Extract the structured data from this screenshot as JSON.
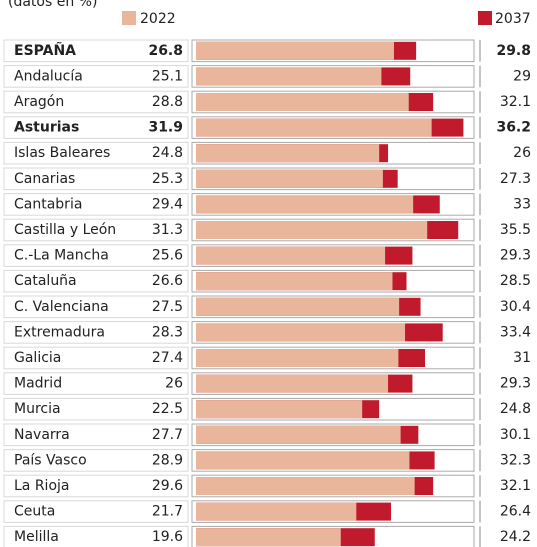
{
  "chart_data": {
    "type": "bar",
    "orientation": "horizontal",
    "overlay": true,
    "subtitle": "(datos en %)",
    "categories": [
      "ESPAÑA",
      "Andalucía",
      "Aragón",
      "Asturias",
      "Islas Baleares",
      "Canarias",
      "Cantabria",
      "Castilla y León",
      "C.-La Mancha",
      "Cataluña",
      "C. Valenciana",
      "Extremadura",
      "Galicia",
      "Madrid",
      "Murcia",
      "Navarra",
      "País Vasco",
      "La Rioja",
      "Ceuta",
      "Melilla"
    ],
    "series": [
      {
        "name": "2022",
        "color": "#e9b59b",
        "values": [
          26.8,
          25.1,
          28.8,
          31.9,
          24.8,
          25.3,
          29.4,
          31.3,
          25.6,
          26.6,
          27.5,
          28.3,
          27.4,
          26,
          22.5,
          27.7,
          28.9,
          29.6,
          21.7,
          19.6
        ]
      },
      {
        "name": "2037",
        "color": "#c01a2c",
        "values": [
          29.8,
          29,
          32.1,
          36.2,
          26,
          27.3,
          33,
          35.5,
          29.3,
          28.5,
          30.4,
          33.4,
          31,
          29.3,
          24.8,
          30.1,
          32.3,
          32.1,
          26.4,
          24.2
        ]
      }
    ],
    "xlim": [
      0,
      37.5
    ]
  }
}
